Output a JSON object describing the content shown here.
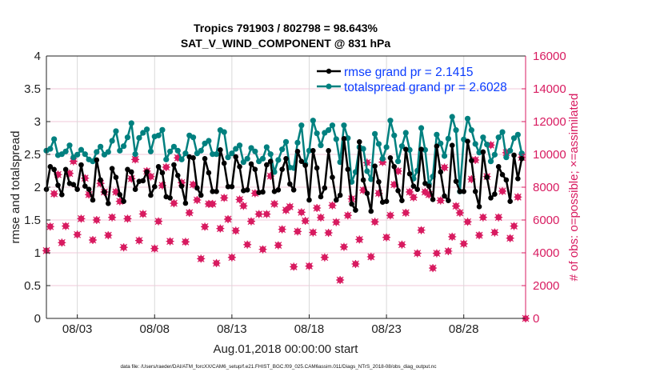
{
  "chart_data": {
    "type": "line",
    "title": [
      "Tropics 791903 / 802798 = 98.643%",
      "SAT_V_WIND_COMPONENT @ 831 hPa"
    ],
    "xlabel": "Aug.01,2018 00:00:00 start",
    "ylabel_left": "rmse and totalspread",
    "ylabel_right": "# of obs: o=possible; ×=assimilated",
    "footnote": "data file: /Users/raeder/DAI/ATM_forcXX/CAM6_setup/f.e21.FHIST_BGC.f09_025.CAM6assim.011/Diags_NTrS_2018-08/obs_diag_output.nc",
    "x_start": "2018-08-01 00:00",
    "x_interval_hours": 6,
    "x_range": [
      "2018-08-01 00:00",
      "2018-09-01 00:00"
    ],
    "x_ticks": [
      {
        "label": "08/03",
        "day": 2
      },
      {
        "label": "08/08",
        "day": 7
      },
      {
        "label": "08/13",
        "day": 12
      },
      {
        "label": "08/18",
        "day": 17
      },
      {
        "label": "08/23",
        "day": 22
      },
      {
        "label": "08/28",
        "day": 27
      }
    ],
    "ylim_left": [
      0,
      4
    ],
    "y_ticks_left": [
      "0",
      "0.5",
      "1",
      "1.5",
      "2",
      "2.5",
      "3",
      "3.5",
      "4"
    ],
    "ylim_right": [
      0,
      16000
    ],
    "y_ticks_right": [
      "0",
      "2000",
      "4000",
      "6000",
      "8000",
      "10000",
      "12000",
      "14000",
      "16000"
    ],
    "grid": true,
    "legend_position": "top-right",
    "colors": {
      "rmse": "#000000",
      "spread": "#00807f",
      "obs": "#d81b60",
      "legend_text": "#0a3cff",
      "grid_h": "#f0c8d8",
      "grid_v": "#d9d9d9"
    },
    "series": [
      {
        "name": "rmse grand pr = 2.1415",
        "axis": "left",
        "values": [
          1.967,
          2.313,
          2.27,
          2.03,
          1.886,
          2.27,
          2.057,
          2.04,
          1.967,
          2.34,
          2.016,
          1.967,
          1.805,
          2.415,
          2.11,
          1.927,
          1.752,
          2.284,
          2.15,
          1.886,
          1.784,
          2.27,
          2.232,
          1.967,
          2.089,
          2.098,
          2.232,
          1.878,
          2.008,
          2.313,
          2.22,
          1.854,
          1.837,
          2.341,
          2.179,
          2.016,
          1.756,
          2.463,
          2.447,
          1.988,
          1.878,
          2.435,
          2.22,
          1.935,
          1.935,
          2.569,
          2.366,
          2.008,
          2.008,
          2.463,
          2.313,
          1.947,
          1.959,
          2.354,
          2.272,
          1.919,
          1.927,
          2.341,
          2.394,
          1.935,
          1.959,
          2.272,
          2.435,
          2.049,
          1.959,
          2.545,
          2.394,
          2.333,
          1.805,
          2.557,
          2.293,
          1.854,
          1.988,
          2.557,
          2.15,
          1.805,
          1.878,
          2.74,
          2.272,
          1.744,
          1.65,
          2.691,
          2.11,
          1.906,
          1.634,
          2.321,
          2.081,
          1.772,
          1.784,
          2.447,
          2.313,
          1.947,
          1.797,
          2.577,
          2.203,
          2.016,
          1.967,
          2.577,
          2.057,
          2.016,
          1.813,
          2.626,
          2.232,
          1.866,
          1.797,
          2.638,
          2.089,
          1.935,
          1.935,
          2.699,
          2.406,
          1.935,
          1.703,
          2.537,
          2.15,
          1.837,
          1.894,
          2.313,
          2.191,
          2.11,
          1.784,
          2.488,
          2.13,
          2.435
        ]
      },
      {
        "name": "totalspread grand pr = 2.6028",
        "axis": "left",
        "values": [
          2.557,
          2.585,
          2.732,
          2.488,
          2.504,
          2.545,
          2.638,
          2.455,
          2.496,
          2.57,
          2.504,
          2.423,
          2.394,
          2.537,
          2.618,
          2.496,
          2.537,
          2.707,
          2.854,
          2.557,
          2.626,
          2.76,
          2.976,
          2.504,
          2.752,
          2.829,
          2.882,
          2.545,
          2.772,
          2.789,
          2.874,
          2.423,
          2.545,
          2.618,
          2.557,
          2.423,
          2.516,
          2.789,
          2.76,
          2.516,
          2.557,
          2.667,
          2.707,
          2.504,
          2.504,
          2.87,
          2.841,
          2.455,
          2.516,
          2.585,
          2.638,
          2.382,
          2.435,
          2.598,
          2.545,
          2.394,
          2.435,
          2.61,
          2.504,
          2.232,
          2.415,
          2.577,
          2.691,
          2.301,
          2.293,
          2.679,
          2.943,
          2.354,
          2.557,
          3.016,
          2.821,
          2.638,
          2.829,
          2.87,
          2.943,
          2.732,
          2.382,
          2.943,
          2.748,
          2.081,
          2.232,
          2.61,
          2.585,
          2.244,
          2.122,
          2.813,
          2.659,
          2.435,
          2.61,
          3.016,
          2.789,
          2.394,
          2.626,
          2.829,
          2.569,
          2.13,
          2.252,
          2.902,
          2.569,
          2.049,
          2.163,
          2.801,
          2.667,
          2.476,
          2.74,
          3.073,
          2.87,
          1.935,
          2.728,
          3.045,
          2.87,
          2.659,
          2.528,
          2.76,
          2.65,
          2.394,
          2.496,
          2.76,
          2.841,
          2.455,
          2.557,
          2.748,
          2.801,
          2.516
        ]
      },
      {
        "name": "possible",
        "axis": "right",
        "marker": "o",
        "values": [
          4130,
          5600,
          7600,
          8770,
          4620,
          5630,
          8840,
          9580,
          5110,
          6080,
          8550,
          7550,
          4780,
          6000,
          8230,
          7710,
          5070,
          6160,
          7710,
          7140,
          4330,
          6080,
          8520,
          9690,
          4750,
          6370,
          8980,
          8650,
          4260,
          5920,
          8110,
          9220,
          4700,
          7020,
          9790,
          8280,
          4670,
          6440,
          8160,
          7220,
          3640,
          5590,
          6980,
          6980,
          3370,
          5480,
          7350,
          6050,
          3720,
          5350,
          7250,
          6860,
          4500,
          5920,
          7630,
          6360,
          4210,
          6360,
          8680,
          6980,
          4460,
          5430,
          6600,
          6810,
          3150,
          5300,
          6470,
          5950,
          3190,
          5240,
          6730,
          6150,
          3720,
          5220,
          6890,
          5870,
          2340,
          4360,
          6280,
          7290,
          3320,
          4810,
          7820,
          9500,
          3760,
          5890,
          7630,
          9530,
          4940,
          6280,
          8160,
          8980,
          4500,
          6440,
          7710,
          7380,
          3970,
          5380,
          7710,
          7550,
          3070,
          3970,
          7190,
          9200,
          4100,
          4980,
          6850,
          6440,
          4550,
          5890,
          8490,
          9660,
          5070,
          6160,
          8650,
          10570,
          5240,
          6160,
          7760,
          10110,
          4890,
          5630,
          7400,
          9820,
          0
        ]
      },
      {
        "name": "assimilated",
        "axis": "right",
        "marker": "x",
        "values": [
          4130,
          5600,
          7600,
          8770,
          4620,
          5630,
          8840,
          9580,
          5110,
          6080,
          8550,
          7550,
          4780,
          6000,
          8230,
          7710,
          5070,
          6160,
          7710,
          7140,
          4330,
          6080,
          8520,
          9690,
          4750,
          6370,
          8980,
          8650,
          4260,
          5920,
          8110,
          9220,
          4700,
          7020,
          9790,
          8280,
          4670,
          6440,
          8160,
          7220,
          3640,
          5590,
          6980,
          6980,
          3370,
          5480,
          7350,
          6050,
          3720,
          5350,
          7250,
          6860,
          4500,
          5920,
          7630,
          6360,
          4210,
          6360,
          8680,
          6980,
          4460,
          5430,
          6600,
          6810,
          3150,
          5300,
          6470,
          5950,
          3190,
          5240,
          6730,
          6150,
          3720,
          5220,
          6890,
          5870,
          2340,
          4360,
          6280,
          7290,
          3320,
          4810,
          7820,
          9500,
          3760,
          5890,
          7630,
          9530,
          4940,
          6280,
          8160,
          8980,
          4500,
          6440,
          7710,
          7380,
          3970,
          5380,
          7710,
          7550,
          3070,
          3970,
          7190,
          9200,
          4100,
          4980,
          6850,
          6440,
          4550,
          5890,
          8490,
          9660,
          5070,
          6160,
          8650,
          10570,
          5240,
          6160,
          7760,
          10110,
          4890,
          5630,
          7400,
          9820,
          0
        ]
      }
    ]
  }
}
